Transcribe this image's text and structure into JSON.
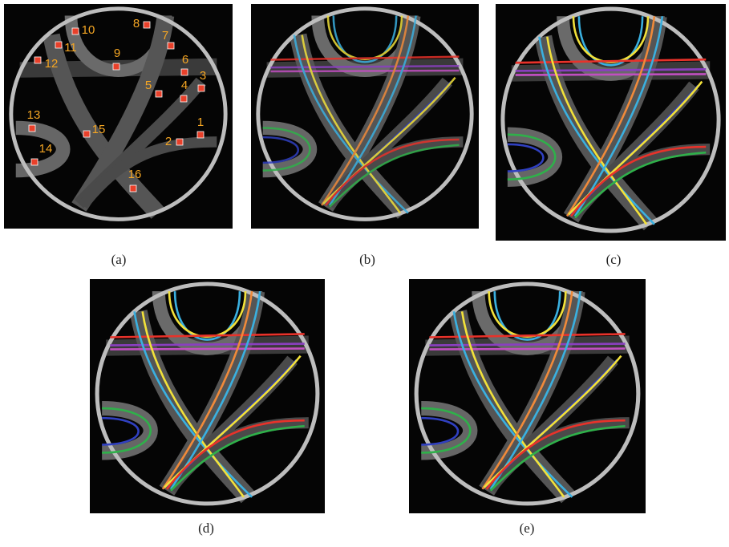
{
  "panels": [
    {
      "label": "(a)",
      "markers": [
        "1",
        "2",
        "3",
        "4",
        "5",
        "6",
        "7",
        "8",
        "9",
        "10",
        "11",
        "12",
        "13",
        "14",
        "15",
        "16"
      ]
    },
    {
      "label": "(b)"
    },
    {
      "label": "(c)"
    },
    {
      "label": "(d)"
    },
    {
      "label": "(e)"
    }
  ]
}
